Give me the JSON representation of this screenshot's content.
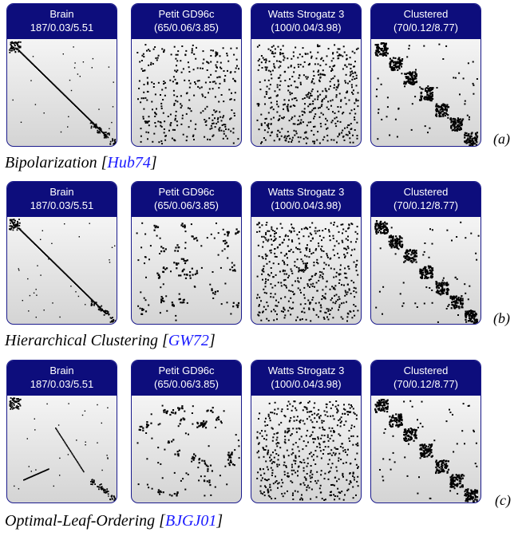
{
  "rows": [
    {
      "label": "(a)",
      "caption_method": "Bipolarization",
      "caption_ref": "Hub74",
      "cards": [
        {
          "name": "Brain",
          "stats": "187/0.03/5.51",
          "pattern": "brain_a"
        },
        {
          "name": "Petit GD96c",
          "stats": "(65/0.06/3.85)",
          "pattern": "scatter"
        },
        {
          "name": "Watts Strogatz 3",
          "stats": "(100/0.04/3.98)",
          "pattern": "scatter_dense"
        },
        {
          "name": "Clustered",
          "stats": "(70/0.12/8.77)",
          "pattern": "blocks"
        }
      ]
    },
    {
      "label": "(b)",
      "caption_method": "Hierarchical Clustering",
      "caption_ref": "GW72",
      "cards": [
        {
          "name": "Brain",
          "stats": "187/0.03/5.51",
          "pattern": "brain_b"
        },
        {
          "name": "Petit GD96c",
          "stats": "(65/0.06/3.85)",
          "pattern": "clumps"
        },
        {
          "name": "Watts Strogatz 3",
          "stats": "(100/0.04/3.98)",
          "pattern": "scatter_dense"
        },
        {
          "name": "Clustered",
          "stats": "(70/0.12/8.77)",
          "pattern": "blocks"
        }
      ]
    },
    {
      "label": "(c)",
      "caption_method": "Optimal-Leaf-Ordering",
      "caption_ref": "BJGJ01",
      "cards": [
        {
          "name": "Brain",
          "stats": "187/0.03/5.51",
          "pattern": "brain_c"
        },
        {
          "name": "Petit GD96c",
          "stats": "(65/0.06/3.85)",
          "pattern": "clumps"
        },
        {
          "name": "Watts Strogatz 3",
          "stats": "(100/0.04/3.98)",
          "pattern": "scatter_dense"
        },
        {
          "name": "Clustered",
          "stats": "(70/0.12/8.77)",
          "pattern": "blocks"
        }
      ]
    }
  ]
}
